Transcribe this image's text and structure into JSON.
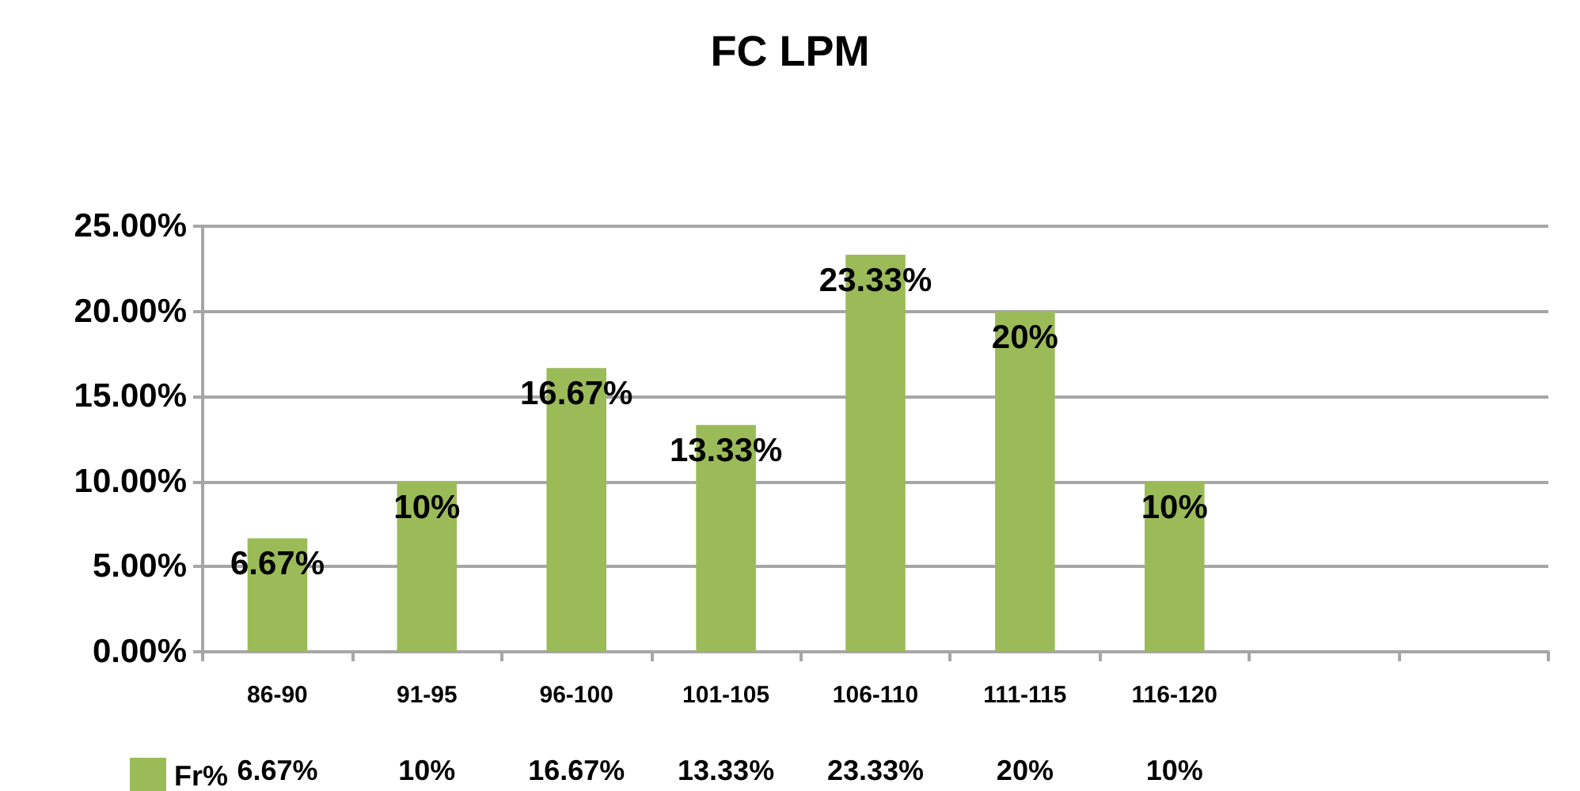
{
  "chart_data": {
    "type": "bar",
    "title": "FC LPM",
    "categories": [
      "86-90",
      "91-95",
      "96-100",
      "101-105",
      "106-110",
      "111-115",
      "116-120",
      null,
      null
    ],
    "series": [
      {
        "name": "Fr%",
        "color": "#9bbb59",
        "values": [
          6.67,
          10,
          16.67,
          13.33,
          23.33,
          20,
          10,
          null,
          null
        ],
        "value_labels": [
          "6.67%",
          "10%",
          "16.67%",
          "13.33%",
          "23.33%",
          "20%",
          "10%",
          null,
          null
        ]
      }
    ],
    "ylim": [
      0,
      25
    ],
    "yticks": [
      {
        "value": 0,
        "label": "0.00%"
      },
      {
        "value": 5,
        "label": "5.00%"
      },
      {
        "value": 10,
        "label": "10.00%"
      },
      {
        "value": 15,
        "label": "15.00%"
      },
      {
        "value": 20,
        "label": "20.00%"
      },
      {
        "value": 25,
        "label": "25.00%"
      }
    ],
    "grid": "y",
    "legend": "bottom left"
  }
}
